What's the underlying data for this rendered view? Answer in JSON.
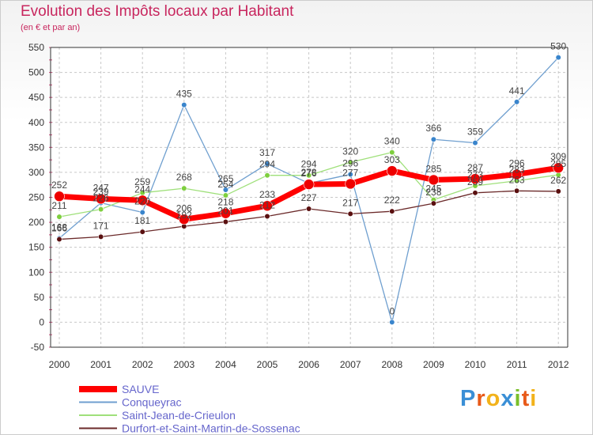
{
  "title": "Evolution des Impôts locaux par Habitant",
  "subtitle": "(en € et par an)",
  "logo": "Proxiti",
  "colors": {
    "title": "#c8265e",
    "legend_text": "#6666cc",
    "sauve": "#ff0000",
    "conqueyrac": "#6f9fcf",
    "saint_jean": "#9fe07a",
    "durfort": "#6b2a2a"
  },
  "chart_data": {
    "type": "line",
    "title": "Evolution des Impôts locaux par Habitant",
    "subtitle": "(en € et par an)",
    "xlabel": "",
    "ylabel": "",
    "ylim": [
      -50,
      550
    ],
    "yticks": [
      -50,
      0,
      50,
      100,
      150,
      200,
      250,
      300,
      350,
      400,
      450,
      500,
      550
    ],
    "grid": true,
    "legend_position": "bottom-left",
    "categories": [
      "2000",
      "2001",
      "2002",
      "2003",
      "2004",
      "2005",
      "2006",
      "2007",
      "2008",
      "2009",
      "2010",
      "2011",
      "2012"
    ],
    "series": [
      {
        "name": "SAUVE",
        "color": "#ff0000",
        "marker": "#ee0000",
        "width": 7,
        "radius": 6.5,
        "values": [
          252,
          247,
          244,
          206,
          218,
          233,
          276,
          277,
          303,
          285,
          287,
          296,
          309
        ]
      },
      {
        "name": "Conqueyrac",
        "color": "#6f9fcf",
        "marker": "#3a85cc",
        "width": 1.3,
        "radius": 3.3,
        "values": [
          168,
          239,
          220,
          435,
          265,
          317,
          278,
          296,
          0,
          366,
          359,
          441,
          530
        ]
      },
      {
        "name": "Saint-Jean-de-Crieulon",
        "color": "#9fe07a",
        "marker": "#7ecf3e",
        "width": 1.3,
        "radius": 3.3,
        "values": [
          211,
          226,
          259,
          268,
          254,
          294,
          294,
          320,
          340,
          245,
          273,
          283,
          295
        ]
      },
      {
        "name": "Durfort-et-Saint-Martin-de-Sossenac",
        "color": "#6b2a2a",
        "marker": "#5a1010",
        "width": 1.3,
        "radius": 3.3,
        "values": [
          166,
          171,
          181,
          192,
          201,
          212,
          227,
          217,
          222,
          238,
          259,
          263,
          262
        ]
      }
    ],
    "data_labels": [
      [
        "252",
        "247",
        "244",
        "206",
        "218",
        "233",
        "276",
        "277",
        "303",
        "285",
        "287",
        "296",
        "309"
      ],
      [
        "168",
        "239",
        "220",
        "435",
        "265",
        "317",
        "278",
        "296",
        "0",
        "366",
        "359",
        "441",
        "530"
      ],
      [
        "211",
        "226",
        "259",
        "268",
        "254",
        "294",
        "294",
        "320",
        "340",
        "245",
        "273",
        "283",
        "295"
      ],
      [
        "166",
        "171",
        "181",
        "192",
        "201",
        "212",
        "227",
        "217",
        "222",
        "238",
        "259",
        "263",
        "262"
      ]
    ]
  }
}
